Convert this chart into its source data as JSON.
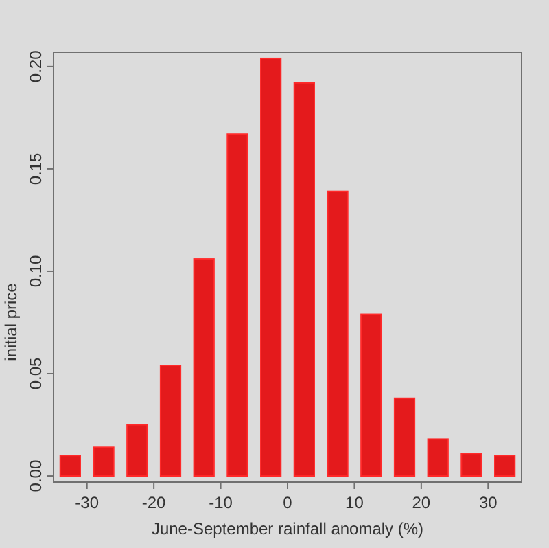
{
  "chart_data": {
    "type": "bar",
    "xlabel": "June-September rainfall anomaly (%)",
    "ylabel": "initial price",
    "x": [
      -32.5,
      -27.5,
      -22.5,
      -17.5,
      -12.5,
      -7.5,
      -2.5,
      2.5,
      7.5,
      12.5,
      17.5,
      22.5,
      27.5,
      32.5
    ],
    "values": [
      0.01,
      0.014,
      0.025,
      0.054,
      0.106,
      0.167,
      0.204,
      0.192,
      0.139,
      0.079,
      0.038,
      0.018,
      0.011,
      0.01
    ],
    "color": "#e41a1c",
    "xlim": [
      -35,
      35
    ],
    "xticks": [
      -30,
      -20,
      -10,
      0,
      10,
      20,
      30
    ],
    "ylim": [
      -0.003,
      0.207
    ],
    "yticks": [
      {
        "value": 0,
        "label": "0.00"
      },
      {
        "value": 0.05,
        "label": "0.05"
      },
      {
        "value": 0.1,
        "label": "0.10"
      },
      {
        "value": 0.15,
        "label": "0.15"
      },
      {
        "value": 0.2,
        "label": "0.20"
      }
    ]
  }
}
